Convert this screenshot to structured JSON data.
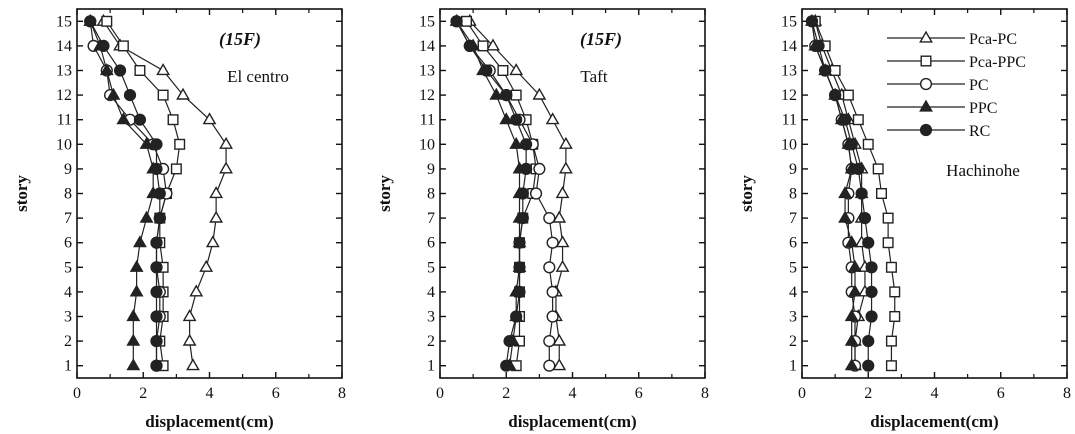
{
  "chart_data": [
    {
      "type": "line",
      "annotations": [
        "(15F)",
        "El centro"
      ],
      "xlabel": "displacement(cm)",
      "ylabel": "story",
      "xlim": [
        0,
        8
      ],
      "ylim": [
        0.5,
        15.5
      ],
      "xticks": [
        0,
        2,
        4,
        6,
        8
      ],
      "yticks": [
        1,
        2,
        3,
        4,
        5,
        6,
        7,
        8,
        9,
        10,
        11,
        12,
        13,
        14,
        15
      ],
      "y": [
        1,
        2,
        3,
        4,
        5,
        6,
        7,
        8,
        9,
        10,
        11,
        12,
        13,
        14,
        15
      ],
      "series": [
        {
          "name": "Pca-PC",
          "marker": "triangle-open",
          "values": [
            3.5,
            3.4,
            3.4,
            3.6,
            3.9,
            4.1,
            4.2,
            4.2,
            4.5,
            4.5,
            4.0,
            3.2,
            2.6,
            1.3,
            0.8
          ]
        },
        {
          "name": "Pca-PPC",
          "marker": "square-open",
          "values": [
            2.6,
            2.5,
            2.6,
            2.6,
            2.6,
            2.5,
            2.5,
            2.7,
            3.0,
            3.1,
            2.9,
            2.6,
            1.9,
            1.4,
            0.9
          ]
        },
        {
          "name": "PC",
          "marker": "circle-open",
          "values": [
            2.4,
            2.4,
            2.5,
            2.5,
            2.4,
            2.4,
            2.5,
            2.7,
            2.6,
            2.3,
            1.6,
            1.0,
            0.9,
            0.5,
            0.4
          ]
        },
        {
          "name": "PPC",
          "marker": "triangle-filled",
          "values": [
            1.7,
            1.7,
            1.7,
            1.8,
            1.8,
            1.9,
            2.1,
            2.3,
            2.3,
            2.1,
            1.4,
            1.1,
            0.9,
            0.7,
            0.4
          ]
        },
        {
          "name": "RC",
          "marker": "circle-filled",
          "values": [
            2.4,
            2.4,
            2.4,
            2.4,
            2.4,
            2.4,
            2.5,
            2.5,
            2.4,
            2.4,
            1.9,
            1.6,
            1.3,
            0.8,
            0.4
          ]
        }
      ]
    },
    {
      "type": "line",
      "annotations": [
        "(15F)",
        "Taft"
      ],
      "xlabel": "displacement(cm)",
      "ylabel": "story",
      "xlim": [
        0,
        8
      ],
      "ylim": [
        0.5,
        15.5
      ],
      "xticks": [
        0,
        2,
        4,
        6,
        8
      ],
      "yticks": [
        1,
        2,
        3,
        4,
        5,
        6,
        7,
        8,
        9,
        10,
        11,
        12,
        13,
        14,
        15
      ],
      "y": [
        1,
        2,
        3,
        4,
        5,
        6,
        7,
        8,
        9,
        10,
        11,
        12,
        13,
        14,
        15
      ],
      "series": [
        {
          "name": "Pca-PC",
          "marker": "triangle-open",
          "values": [
            3.6,
            3.6,
            3.5,
            3.5,
            3.7,
            3.7,
            3.6,
            3.7,
            3.8,
            3.8,
            3.4,
            3.0,
            2.3,
            1.6,
            0.9
          ]
        },
        {
          "name": "Pca-PPC",
          "marker": "square-open",
          "values": [
            2.3,
            2.4,
            2.4,
            2.4,
            2.4,
            2.4,
            2.5,
            2.8,
            2.9,
            2.8,
            2.6,
            2.3,
            1.9,
            1.3,
            0.8
          ]
        },
        {
          "name": "PC",
          "marker": "circle-open",
          "values": [
            3.3,
            3.3,
            3.4,
            3.4,
            3.3,
            3.4,
            3.3,
            2.9,
            3.0,
            2.8,
            2.4,
            2.0,
            1.5,
            0.9,
            0.5
          ]
        },
        {
          "name": "PPC",
          "marker": "triangle-filled",
          "values": [
            2.1,
            2.2,
            2.3,
            2.3,
            2.4,
            2.4,
            2.4,
            2.4,
            2.4,
            2.3,
            2.0,
            1.7,
            1.3,
            1.0,
            0.5
          ]
        },
        {
          "name": "RC",
          "marker": "circle-filled",
          "values": [
            2.0,
            2.1,
            2.3,
            2.4,
            2.4,
            2.4,
            2.5,
            2.5,
            2.6,
            2.6,
            2.3,
            2.0,
            1.4,
            0.9,
            0.5
          ]
        }
      ]
    },
    {
      "type": "line",
      "annotations": [
        "Hachinohe"
      ],
      "xlabel": "displacement(cm)",
      "ylabel": "story",
      "xlim": [
        0,
        8
      ],
      "ylim": [
        0.5,
        15.5
      ],
      "xticks": [
        0,
        2,
        4,
        6,
        8
      ],
      "yticks": [
        1,
        2,
        3,
        4,
        5,
        6,
        7,
        8,
        9,
        10,
        11,
        12,
        13,
        14,
        15
      ],
      "y": [
        1,
        2,
        3,
        4,
        5,
        6,
        7,
        8,
        9,
        10,
        11,
        12,
        13,
        14,
        15
      ],
      "legend": "top-right",
      "series": [
        {
          "name": "Pca-PC",
          "marker": "triangle-open",
          "values": [
            1.6,
            1.6,
            1.7,
            1.9,
            1.9,
            1.8,
            1.8,
            1.8,
            1.8,
            1.6,
            1.4,
            1.2,
            0.9,
            0.6,
            0.4
          ]
        },
        {
          "name": "Pca-PPC",
          "marker": "square-open",
          "values": [
            2.7,
            2.7,
            2.8,
            2.8,
            2.7,
            2.6,
            2.6,
            2.4,
            2.3,
            2.0,
            1.7,
            1.4,
            1.0,
            0.7,
            0.4
          ]
        },
        {
          "name": "PC",
          "marker": "circle-open",
          "values": [
            1.6,
            1.6,
            1.6,
            1.5,
            1.5,
            1.4,
            1.4,
            1.4,
            1.5,
            1.4,
            1.2,
            1.0,
            0.7,
            0.4,
            0.3
          ]
        },
        {
          "name": "PPC",
          "marker": "triangle-filled",
          "values": [
            1.5,
            1.5,
            1.5,
            1.6,
            1.6,
            1.5,
            1.3,
            1.3,
            1.5,
            1.4,
            1.2,
            1.0,
            0.7,
            0.4,
            0.3
          ]
        },
        {
          "name": "RC",
          "marker": "circle-filled",
          "values": [
            2.0,
            2.0,
            2.1,
            2.1,
            2.1,
            2.0,
            1.9,
            1.8,
            1.7,
            1.5,
            1.3,
            1.0,
            0.7,
            0.5,
            0.3
          ]
        }
      ]
    }
  ]
}
